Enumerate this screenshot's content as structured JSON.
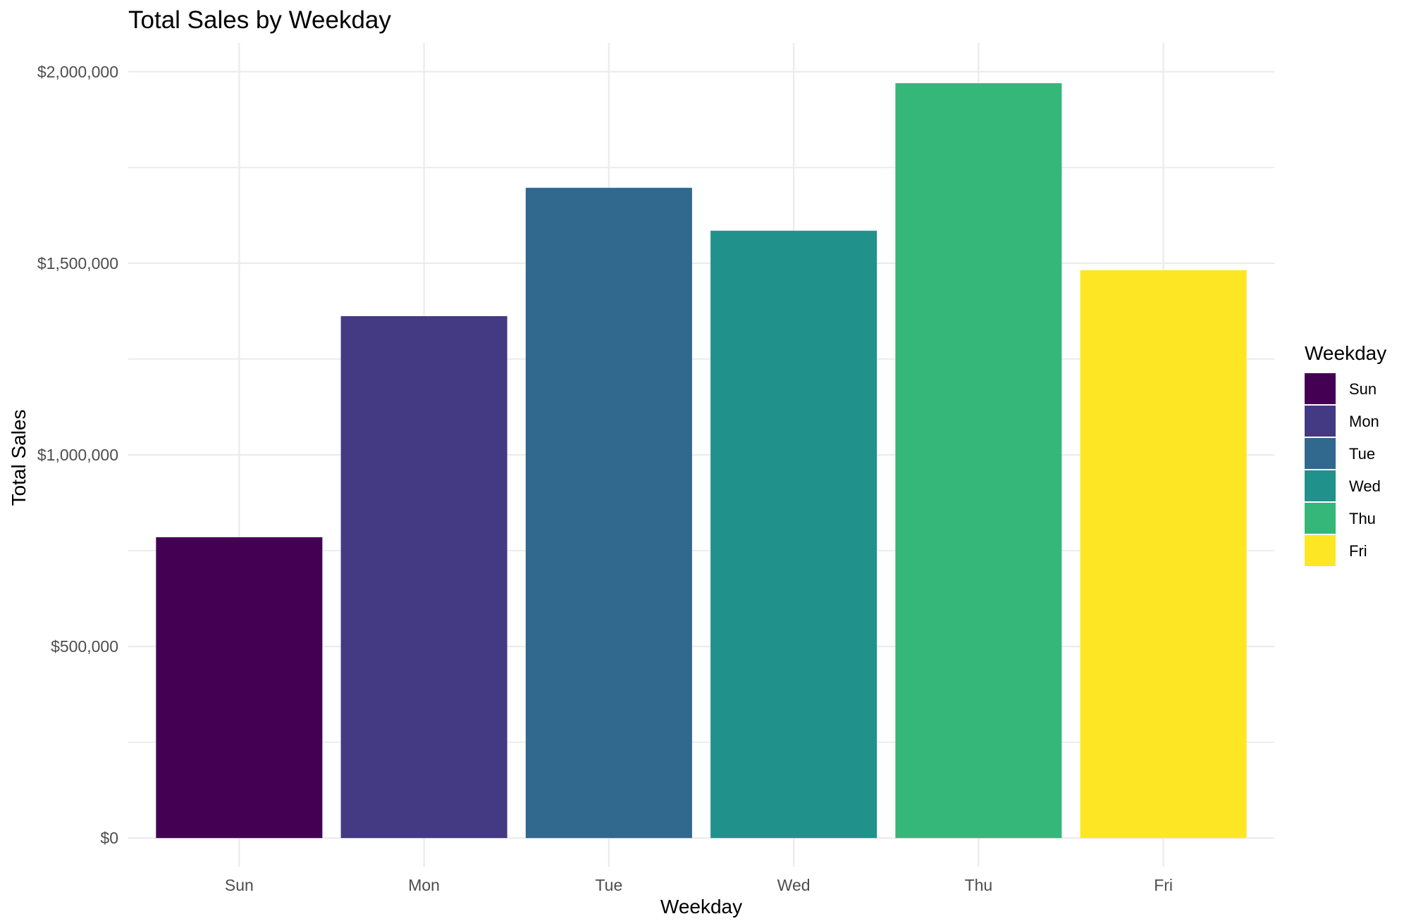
{
  "chart_data": {
    "type": "bar",
    "title": "Total Sales by Weekday",
    "xlabel": "Weekday",
    "ylabel": "Total Sales",
    "categories": [
      "Sun",
      "Mon",
      "Tue",
      "Wed",
      "Thu",
      "Fri"
    ],
    "values": [
      785000,
      1362000,
      1697000,
      1585000,
      1970000,
      1482000
    ],
    "colors": [
      "#440154",
      "#443983",
      "#31688e",
      "#21918c",
      "#35b779",
      "#fde725"
    ],
    "ylim": [
      -75000,
      2075000
    ],
    "yticks": [
      0,
      500000,
      1000000,
      1500000,
      2000000
    ],
    "ytick_labels": [
      "$0",
      "$500,000",
      "$1,000,000",
      "$1,500,000",
      "$2,000,000"
    ],
    "grid": true,
    "legend": {
      "title": "Weekday",
      "placement": "right",
      "entries": [
        "Sun",
        "Mon",
        "Tue",
        "Wed",
        "Thu",
        "Fri"
      ]
    }
  }
}
